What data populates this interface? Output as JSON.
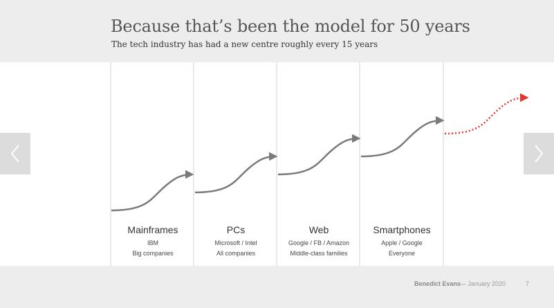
{
  "slide": {
    "title": "Because that’s been the model for 50 years",
    "subtitle": "The tech industry has had a new centre roughly every 15 years"
  },
  "eras": [
    {
      "name": "Mainframes",
      "line1": "IBM",
      "line2": "Big companies"
    },
    {
      "name": "PCs",
      "line1": "Microsoft / Intel",
      "line2": "All companies"
    },
    {
      "name": "Web",
      "line1": "Google / FB / Amazon",
      "line2": "Middle-class families"
    },
    {
      "name": "Smartphones",
      "line1": "Apple / Google",
      "line2": "Everyone"
    }
  ],
  "colors": {
    "curve": "#7a7a7a",
    "future_curve": "#e0382e"
  },
  "navigation": {
    "prev_icon": "chevron-left-icon",
    "next_icon": "chevron-right-icon"
  },
  "footer": {
    "author": "Benedict Evans",
    "date": "— January 2020",
    "page": "7"
  }
}
